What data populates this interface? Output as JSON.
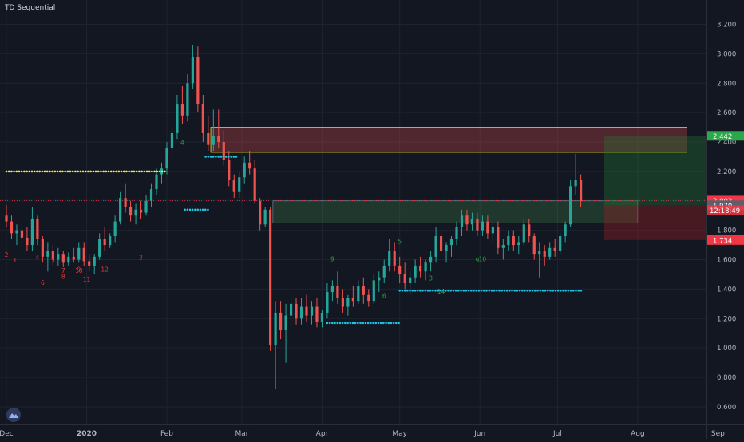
{
  "header": {
    "indicator_title": "TD Sequential"
  },
  "colors": {
    "background": "#131722",
    "grid": "#1f2331",
    "candle_up": "#26a69a",
    "candle_down": "#ef5350",
    "resistance_dots": "#ffeb3b",
    "support_dots": "#22c2e0",
    "supply_zone_border": "#d4c21c",
    "demand_zone": "#4caf50",
    "target_zone": "#1b5e20",
    "stop_zone": "#7f1d1d",
    "price_label_green": "#2ba84a",
    "price_label_red": "#f23645"
  },
  "chart_data": {
    "type": "candlestick",
    "x_axis": {
      "labels": [
        "Dec",
        "2020",
        "Feb",
        "Mar",
        "Apr",
        "May",
        "Jun",
        "Jul",
        "Aug",
        "Sep"
      ]
    },
    "y_axis": {
      "range": [
        0.5,
        3.3
      ],
      "ticks": [
        "3.200",
        "3.000",
        "2.800",
        "2.600",
        "2.400",
        "2.200",
        "2.000",
        "1.800",
        "1.600",
        "1.400",
        "1.200",
        "1.000",
        "0.800",
        "0.600"
      ]
    },
    "price_labels": [
      {
        "value": 2.442,
        "text": "2.442",
        "color": "#2ba84a"
      },
      {
        "value": 2.002,
        "text": "2.002",
        "color": "#f23645"
      },
      {
        "value": 1.97,
        "text": "1.970",
        "color": "#5d606b"
      },
      {
        "value": 1.734,
        "text": "1.734",
        "color": "#f23645"
      }
    ],
    "countdown": "12:18:49",
    "zones": [
      {
        "kind": "supply",
        "x_start": "Feb 18",
        "x_end": "Aug 20",
        "y_low": 2.33,
        "y_high": 2.5
      },
      {
        "kind": "demand",
        "x_start": "Mar 13",
        "x_end": "Aug 1",
        "y_low": 1.85,
        "y_high": 2.0
      },
      {
        "kind": "target",
        "x_start": "Jul 19",
        "x_end": "Sep 5",
        "y_low": 1.97,
        "y_high": 2.442
      },
      {
        "kind": "stop",
        "x_start": "Jul 19",
        "x_end": "Sep 5",
        "y_low": 1.734,
        "y_high": 1.97
      }
    ],
    "dot_lines": [
      {
        "kind": "resistance",
        "x_start": "Dec 1",
        "x_end": "Feb 1",
        "y": 2.2
      },
      {
        "kind": "support",
        "x_start": "Feb 16",
        "x_end": "Feb 28",
        "y": 2.3
      },
      {
        "kind": "support",
        "x_start": "Feb 8",
        "x_end": "Feb 17",
        "y": 1.94
      },
      {
        "kind": "support",
        "x_start": "Apr 3",
        "x_end": "May 1",
        "y": 1.17
      },
      {
        "kind": "support",
        "x_start": "May 1",
        "x_end": "Jul 11",
        "y": 1.39
      }
    ],
    "candles": [
      {
        "d": "Dec 1",
        "o": 1.9,
        "h": 1.97,
        "l": 1.82,
        "c": 1.86
      },
      {
        "d": "Dec 3",
        "o": 1.86,
        "h": 1.9,
        "l": 1.74,
        "c": 1.78
      },
      {
        "d": "Dec 5",
        "o": 1.78,
        "h": 1.84,
        "l": 1.7,
        "c": 1.8
      },
      {
        "d": "Dec 7",
        "o": 1.8,
        "h": 1.86,
        "l": 1.72,
        "c": 1.75
      },
      {
        "d": "Dec 9",
        "o": 1.75,
        "h": 1.82,
        "l": 1.66,
        "c": 1.7
      },
      {
        "d": "Dec 11",
        "o": 1.7,
        "h": 1.96,
        "l": 1.66,
        "c": 1.88
      },
      {
        "d": "Dec 13",
        "o": 1.88,
        "h": 1.9,
        "l": 1.7,
        "c": 1.74
      },
      {
        "d": "Dec 15",
        "o": 1.74,
        "h": 1.76,
        "l": 1.58,
        "c": 1.62
      },
      {
        "d": "Dec 17",
        "o": 1.62,
        "h": 1.72,
        "l": 1.52,
        "c": 1.66
      },
      {
        "d": "Dec 19",
        "o": 1.66,
        "h": 1.7,
        "l": 1.56,
        "c": 1.6
      },
      {
        "d": "Dec 21",
        "o": 1.6,
        "h": 1.68,
        "l": 1.56,
        "c": 1.64
      },
      {
        "d": "Dec 23",
        "o": 1.64,
        "h": 1.66,
        "l": 1.55,
        "c": 1.58
      },
      {
        "d": "Dec 25",
        "o": 1.58,
        "h": 1.65,
        "l": 1.56,
        "c": 1.62
      },
      {
        "d": "Dec 27",
        "o": 1.62,
        "h": 1.68,
        "l": 1.58,
        "c": 1.6
      },
      {
        "d": "Dec 29",
        "o": 1.6,
        "h": 1.72,
        "l": 1.58,
        "c": 1.68
      },
      {
        "d": "Dec 31",
        "o": 1.68,
        "h": 1.72,
        "l": 1.56,
        "c": 1.59
      },
      {
        "d": "Jan 2",
        "o": 1.59,
        "h": 1.64,
        "l": 1.52,
        "c": 1.56
      },
      {
        "d": "Jan 4",
        "o": 1.56,
        "h": 1.64,
        "l": 1.5,
        "c": 1.62
      },
      {
        "d": "Jan 6",
        "o": 1.62,
        "h": 1.78,
        "l": 1.6,
        "c": 1.74
      },
      {
        "d": "Jan 8",
        "o": 1.74,
        "h": 1.82,
        "l": 1.66,
        "c": 1.7
      },
      {
        "d": "Jan 10",
        "o": 1.7,
        "h": 1.78,
        "l": 1.68,
        "c": 1.76
      },
      {
        "d": "Jan 12",
        "o": 1.76,
        "h": 1.9,
        "l": 1.72,
        "c": 1.86
      },
      {
        "d": "Jan 14",
        "o": 1.86,
        "h": 2.06,
        "l": 1.84,
        "c": 2.02
      },
      {
        "d": "Jan 16",
        "o": 2.02,
        "h": 2.12,
        "l": 1.92,
        "c": 1.96
      },
      {
        "d": "Jan 18",
        "o": 1.96,
        "h": 2.0,
        "l": 1.86,
        "c": 1.9
      },
      {
        "d": "Jan 20",
        "o": 1.9,
        "h": 1.98,
        "l": 1.84,
        "c": 1.94
      },
      {
        "d": "Jan 22",
        "o": 1.94,
        "h": 2.0,
        "l": 1.88,
        "c": 1.92
      },
      {
        "d": "Jan 24",
        "o": 1.92,
        "h": 2.04,
        "l": 1.9,
        "c": 2.0
      },
      {
        "d": "Jan 26",
        "o": 2.0,
        "h": 2.12,
        "l": 1.96,
        "c": 2.08
      },
      {
        "d": "Jan 28",
        "o": 2.08,
        "h": 2.22,
        "l": 2.04,
        "c": 2.18
      },
      {
        "d": "Jan 30",
        "o": 2.18,
        "h": 2.26,
        "l": 2.12,
        "c": 2.22
      },
      {
        "d": "Feb 1",
        "o": 2.22,
        "h": 2.4,
        "l": 2.18,
        "c": 2.36
      },
      {
        "d": "Feb 3",
        "o": 2.36,
        "h": 2.5,
        "l": 2.3,
        "c": 2.46
      },
      {
        "d": "Feb 5",
        "o": 2.46,
        "h": 2.72,
        "l": 2.42,
        "c": 2.66
      },
      {
        "d": "Feb 7",
        "o": 2.66,
        "h": 2.78,
        "l": 2.52,
        "c": 2.58
      },
      {
        "d": "Feb 9",
        "o": 2.58,
        "h": 2.86,
        "l": 2.54,
        "c": 2.8
      },
      {
        "d": "Feb 11",
        "o": 2.8,
        "h": 3.06,
        "l": 2.76,
        "c": 2.98
      },
      {
        "d": "Feb 13",
        "o": 2.98,
        "h": 3.05,
        "l": 2.6,
        "c": 2.66
      },
      {
        "d": "Feb 15",
        "o": 2.66,
        "h": 2.72,
        "l": 2.4,
        "c": 2.46
      },
      {
        "d": "Feb 17",
        "o": 2.46,
        "h": 2.58,
        "l": 2.34,
        "c": 2.38
      },
      {
        "d": "Feb 19",
        "o": 2.38,
        "h": 2.62,
        "l": 2.34,
        "c": 2.44
      },
      {
        "d": "Feb 21",
        "o": 2.44,
        "h": 2.62,
        "l": 2.36,
        "c": 2.4
      },
      {
        "d": "Feb 23",
        "o": 2.4,
        "h": 2.48,
        "l": 2.24,
        "c": 2.28
      },
      {
        "d": "Feb 25",
        "o": 2.28,
        "h": 2.34,
        "l": 2.1,
        "c": 2.14
      },
      {
        "d": "Feb 27",
        "o": 2.14,
        "h": 2.18,
        "l": 2.02,
        "c": 2.06
      },
      {
        "d": "Feb 29",
        "o": 2.06,
        "h": 2.2,
        "l": 2.02,
        "c": 2.16
      },
      {
        "d": "Mar 2",
        "o": 2.16,
        "h": 2.3,
        "l": 2.12,
        "c": 2.26
      },
      {
        "d": "Mar 4",
        "o": 2.26,
        "h": 2.34,
        "l": 2.18,
        "c": 2.22
      },
      {
        "d": "Mar 6",
        "o": 2.22,
        "h": 2.28,
        "l": 1.98,
        "c": 2.0
      },
      {
        "d": "Mar 8",
        "o": 2.0,
        "h": 2.02,
        "l": 1.8,
        "c": 1.84
      },
      {
        "d": "Mar 10",
        "o": 1.84,
        "h": 1.96,
        "l": 1.82,
        "c": 1.94
      },
      {
        "d": "Mar 12",
        "o": 1.94,
        "h": 1.96,
        "l": 0.98,
        "c": 1.02
      },
      {
        "d": "Mar 14",
        "o": 1.02,
        "h": 1.32,
        "l": 0.72,
        "c": 1.24
      },
      {
        "d": "Mar 16",
        "o": 1.24,
        "h": 1.32,
        "l": 1.06,
        "c": 1.12
      },
      {
        "d": "Mar 18",
        "o": 1.12,
        "h": 1.3,
        "l": 0.9,
        "c": 1.22
      },
      {
        "d": "Mar 20",
        "o": 1.22,
        "h": 1.36,
        "l": 1.16,
        "c": 1.3
      },
      {
        "d": "Mar 22",
        "o": 1.3,
        "h": 1.34,
        "l": 1.16,
        "c": 1.2
      },
      {
        "d": "Mar 24",
        "o": 1.2,
        "h": 1.34,
        "l": 1.16,
        "c": 1.28
      },
      {
        "d": "Mar 26",
        "o": 1.28,
        "h": 1.36,
        "l": 1.18,
        "c": 1.22
      },
      {
        "d": "Mar 28",
        "o": 1.22,
        "h": 1.32,
        "l": 1.16,
        "c": 1.28
      },
      {
        "d": "Mar 30",
        "o": 1.28,
        "h": 1.34,
        "l": 1.14,
        "c": 1.18
      },
      {
        "d": "Apr 1",
        "o": 1.18,
        "h": 1.26,
        "l": 1.14,
        "c": 1.24
      },
      {
        "d": "Apr 3",
        "o": 1.24,
        "h": 1.44,
        "l": 1.2,
        "c": 1.38
      },
      {
        "d": "Apr 5",
        "o": 1.38,
        "h": 1.46,
        "l": 1.32,
        "c": 1.42
      },
      {
        "d": "Apr 7",
        "o": 1.42,
        "h": 1.52,
        "l": 1.3,
        "c": 1.34
      },
      {
        "d": "Apr 9",
        "o": 1.34,
        "h": 1.4,
        "l": 1.24,
        "c": 1.28
      },
      {
        "d": "Apr 11",
        "o": 1.28,
        "h": 1.36,
        "l": 1.22,
        "c": 1.34
      },
      {
        "d": "Apr 13",
        "o": 1.34,
        "h": 1.42,
        "l": 1.28,
        "c": 1.32
      },
      {
        "d": "Apr 15",
        "o": 1.32,
        "h": 1.46,
        "l": 1.3,
        "c": 1.42
      },
      {
        "d": "Apr 17",
        "o": 1.42,
        "h": 1.48,
        "l": 1.3,
        "c": 1.36
      },
      {
        "d": "Apr 19",
        "o": 1.36,
        "h": 1.4,
        "l": 1.28,
        "c": 1.32
      },
      {
        "d": "Apr 21",
        "o": 1.32,
        "h": 1.5,
        "l": 1.3,
        "c": 1.46
      },
      {
        "d": "Apr 23",
        "o": 1.46,
        "h": 1.52,
        "l": 1.38,
        "c": 1.48
      },
      {
        "d": "Apr 25",
        "o": 1.48,
        "h": 1.6,
        "l": 1.44,
        "c": 1.56
      },
      {
        "d": "Apr 27",
        "o": 1.56,
        "h": 1.74,
        "l": 1.52,
        "c": 1.66
      },
      {
        "d": "Apr 29",
        "o": 1.66,
        "h": 1.72,
        "l": 1.52,
        "c": 1.56
      },
      {
        "d": "May 1",
        "o": 1.56,
        "h": 1.62,
        "l": 1.44,
        "c": 1.5
      },
      {
        "d": "May 3",
        "o": 1.5,
        "h": 1.58,
        "l": 1.4,
        "c": 1.44
      },
      {
        "d": "May 5",
        "o": 1.44,
        "h": 1.52,
        "l": 1.36,
        "c": 1.48
      },
      {
        "d": "May 7",
        "o": 1.48,
        "h": 1.6,
        "l": 1.44,
        "c": 1.56
      },
      {
        "d": "May 9",
        "o": 1.56,
        "h": 1.62,
        "l": 1.48,
        "c": 1.52
      },
      {
        "d": "May 11",
        "o": 1.52,
        "h": 1.6,
        "l": 1.46,
        "c": 1.58
      },
      {
        "d": "May 13",
        "o": 1.58,
        "h": 1.66,
        "l": 1.52,
        "c": 1.62
      },
      {
        "d": "May 15",
        "o": 1.62,
        "h": 1.82,
        "l": 1.58,
        "c": 1.76
      },
      {
        "d": "May 17",
        "o": 1.76,
        "h": 1.8,
        "l": 1.62,
        "c": 1.66
      },
      {
        "d": "May 19",
        "o": 1.66,
        "h": 1.72,
        "l": 1.58,
        "c": 1.7
      },
      {
        "d": "May 21",
        "o": 1.7,
        "h": 1.76,
        "l": 1.62,
        "c": 1.74
      },
      {
        "d": "May 23",
        "o": 1.74,
        "h": 1.86,
        "l": 1.7,
        "c": 1.82
      },
      {
        "d": "May 25",
        "o": 1.82,
        "h": 1.94,
        "l": 1.76,
        "c": 1.9
      },
      {
        "d": "May 27",
        "o": 1.9,
        "h": 1.94,
        "l": 1.8,
        "c": 1.84
      },
      {
        "d": "May 29",
        "o": 1.84,
        "h": 1.92,
        "l": 1.8,
        "c": 1.88
      },
      {
        "d": "May 31",
        "o": 1.88,
        "h": 1.92,
        "l": 1.76,
        "c": 1.8
      },
      {
        "d": "Jun 2",
        "o": 1.8,
        "h": 1.9,
        "l": 1.76,
        "c": 1.86
      },
      {
        "d": "Jun 4",
        "o": 1.86,
        "h": 1.9,
        "l": 1.74,
        "c": 1.78
      },
      {
        "d": "Jun 6",
        "o": 1.78,
        "h": 1.86,
        "l": 1.72,
        "c": 1.82
      },
      {
        "d": "Jun 8",
        "o": 1.82,
        "h": 1.86,
        "l": 1.64,
        "c": 1.68
      },
      {
        "d": "Jun 10",
        "o": 1.68,
        "h": 1.74,
        "l": 1.6,
        "c": 1.7
      },
      {
        "d": "Jun 12",
        "o": 1.7,
        "h": 1.8,
        "l": 1.66,
        "c": 1.76
      },
      {
        "d": "Jun 14",
        "o": 1.76,
        "h": 1.8,
        "l": 1.66,
        "c": 1.7
      },
      {
        "d": "Jun 16",
        "o": 1.7,
        "h": 1.76,
        "l": 1.64,
        "c": 1.72
      },
      {
        "d": "Jun 18",
        "o": 1.72,
        "h": 1.88,
        "l": 1.7,
        "c": 1.84
      },
      {
        "d": "Jun 20",
        "o": 1.84,
        "h": 1.88,
        "l": 1.72,
        "c": 1.76
      },
      {
        "d": "Jun 22",
        "o": 1.76,
        "h": 1.78,
        "l": 1.6,
        "c": 1.64
      },
      {
        "d": "Jun 24",
        "o": 1.64,
        "h": 1.72,
        "l": 1.48,
        "c": 1.66
      },
      {
        "d": "Jun 26",
        "o": 1.66,
        "h": 1.7,
        "l": 1.56,
        "c": 1.62
      },
      {
        "d": "Jun 28",
        "o": 1.62,
        "h": 1.72,
        "l": 1.6,
        "c": 1.68
      },
      {
        "d": "Jun 30",
        "o": 1.68,
        "h": 1.74,
        "l": 1.62,
        "c": 1.66
      },
      {
        "d": "Jul 2",
        "o": 1.66,
        "h": 1.78,
        "l": 1.64,
        "c": 1.76
      },
      {
        "d": "Jul 4",
        "o": 1.76,
        "h": 1.86,
        "l": 1.72,
        "c": 1.84
      },
      {
        "d": "Jul 6",
        "o": 1.84,
        "h": 2.14,
        "l": 1.82,
        "c": 2.1
      },
      {
        "d": "Jul 8",
        "o": 2.1,
        "h": 2.32,
        "l": 2.04,
        "c": 2.14
      },
      {
        "d": "Jul 10",
        "o": 2.14,
        "h": 2.18,
        "l": 1.96,
        "c": 2.0
      }
    ],
    "td_counts": [
      {
        "text": "2",
        "d": "Dec 1",
        "y": 1.62,
        "color": "red"
      },
      {
        "text": "3",
        "d": "Dec 4",
        "y": 1.58,
        "color": "red"
      },
      {
        "text": "4",
        "d": "Dec 13",
        "y": 1.6,
        "color": "red"
      },
      {
        "text": "5",
        "d": "Dec 19",
        "y": 1.58,
        "color": "red"
      },
      {
        "text": "6",
        "d": "Dec 15",
        "y": 1.43,
        "color": "red"
      },
      {
        "text": "7",
        "d": "Dec 23",
        "y": 1.51,
        "color": "red"
      },
      {
        "text": "8",
        "d": "Dec 23",
        "y": 1.47,
        "color": "red"
      },
      {
        "text": "9",
        "d": "Dec 29",
        "y": 1.52,
        "color": "red"
      },
      {
        "text": "10",
        "d": "Dec 29",
        "y": 1.51,
        "color": "red"
      },
      {
        "text": "11",
        "d": "Jan 1",
        "y": 1.45,
        "color": "red"
      },
      {
        "text": "12",
        "d": "Jan 8",
        "y": 1.52,
        "color": "red"
      },
      {
        "text": "2",
        "d": "Jan 22",
        "y": 1.6,
        "color": "red"
      },
      {
        "text": "4",
        "d": "Feb 7",
        "y": 2.38,
        "color": "green"
      },
      {
        "text": "9",
        "d": "Apr 5",
        "y": 1.59,
        "color": "green"
      },
      {
        "text": "5",
        "d": "Apr 21",
        "y": 1.42,
        "color": "green"
      },
      {
        "text": "6",
        "d": "Apr 25",
        "y": 1.34,
        "color": "green"
      },
      {
        "text": "5",
        "d": "May 1",
        "y": 1.71,
        "color": "green"
      },
      {
        "text": "3",
        "d": "May 13",
        "y": 1.46,
        "color": "green"
      },
      {
        "text": "14",
        "d": "May 17",
        "y": 1.37,
        "color": "green"
      },
      {
        "text": "9",
        "d": "May 31",
        "y": 1.58,
        "color": "green"
      },
      {
        "text": "10",
        "d": "Jun 2",
        "y": 1.59,
        "color": "green"
      }
    ]
  }
}
